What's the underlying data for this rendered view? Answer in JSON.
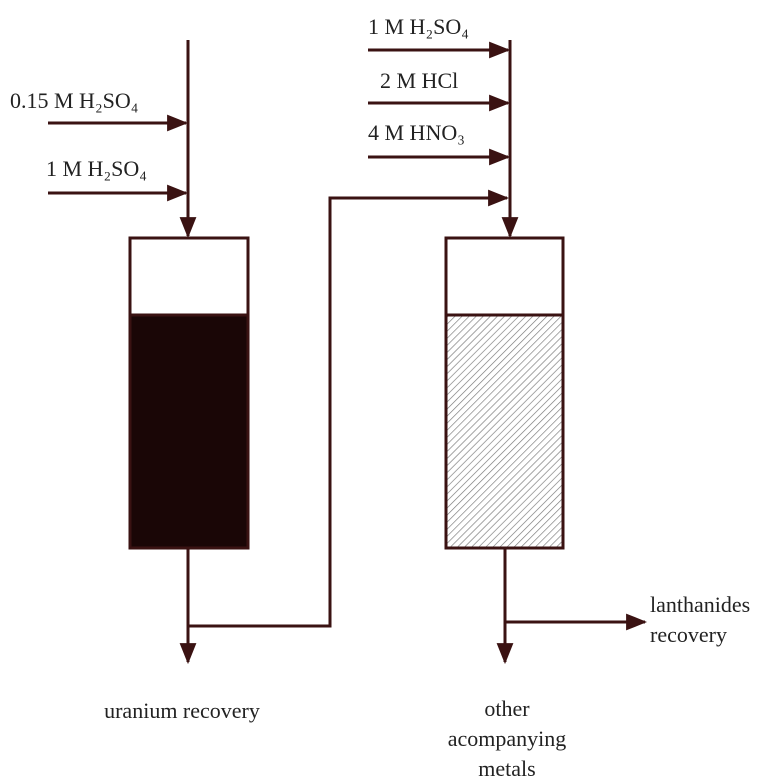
{
  "left_inputs": [
    "0.15 M H₂SO₄",
    "1 M H₂SO₄"
  ],
  "right_inputs": [
    "1 M H₂SO₄",
    "2 M HCl",
    "4 M HNO₃"
  ],
  "outputs": {
    "uranium": "uranium recovery",
    "lanthanides": [
      "lanthanides",
      "recovery"
    ],
    "other": [
      "other",
      "acompanying",
      "metals"
    ]
  }
}
